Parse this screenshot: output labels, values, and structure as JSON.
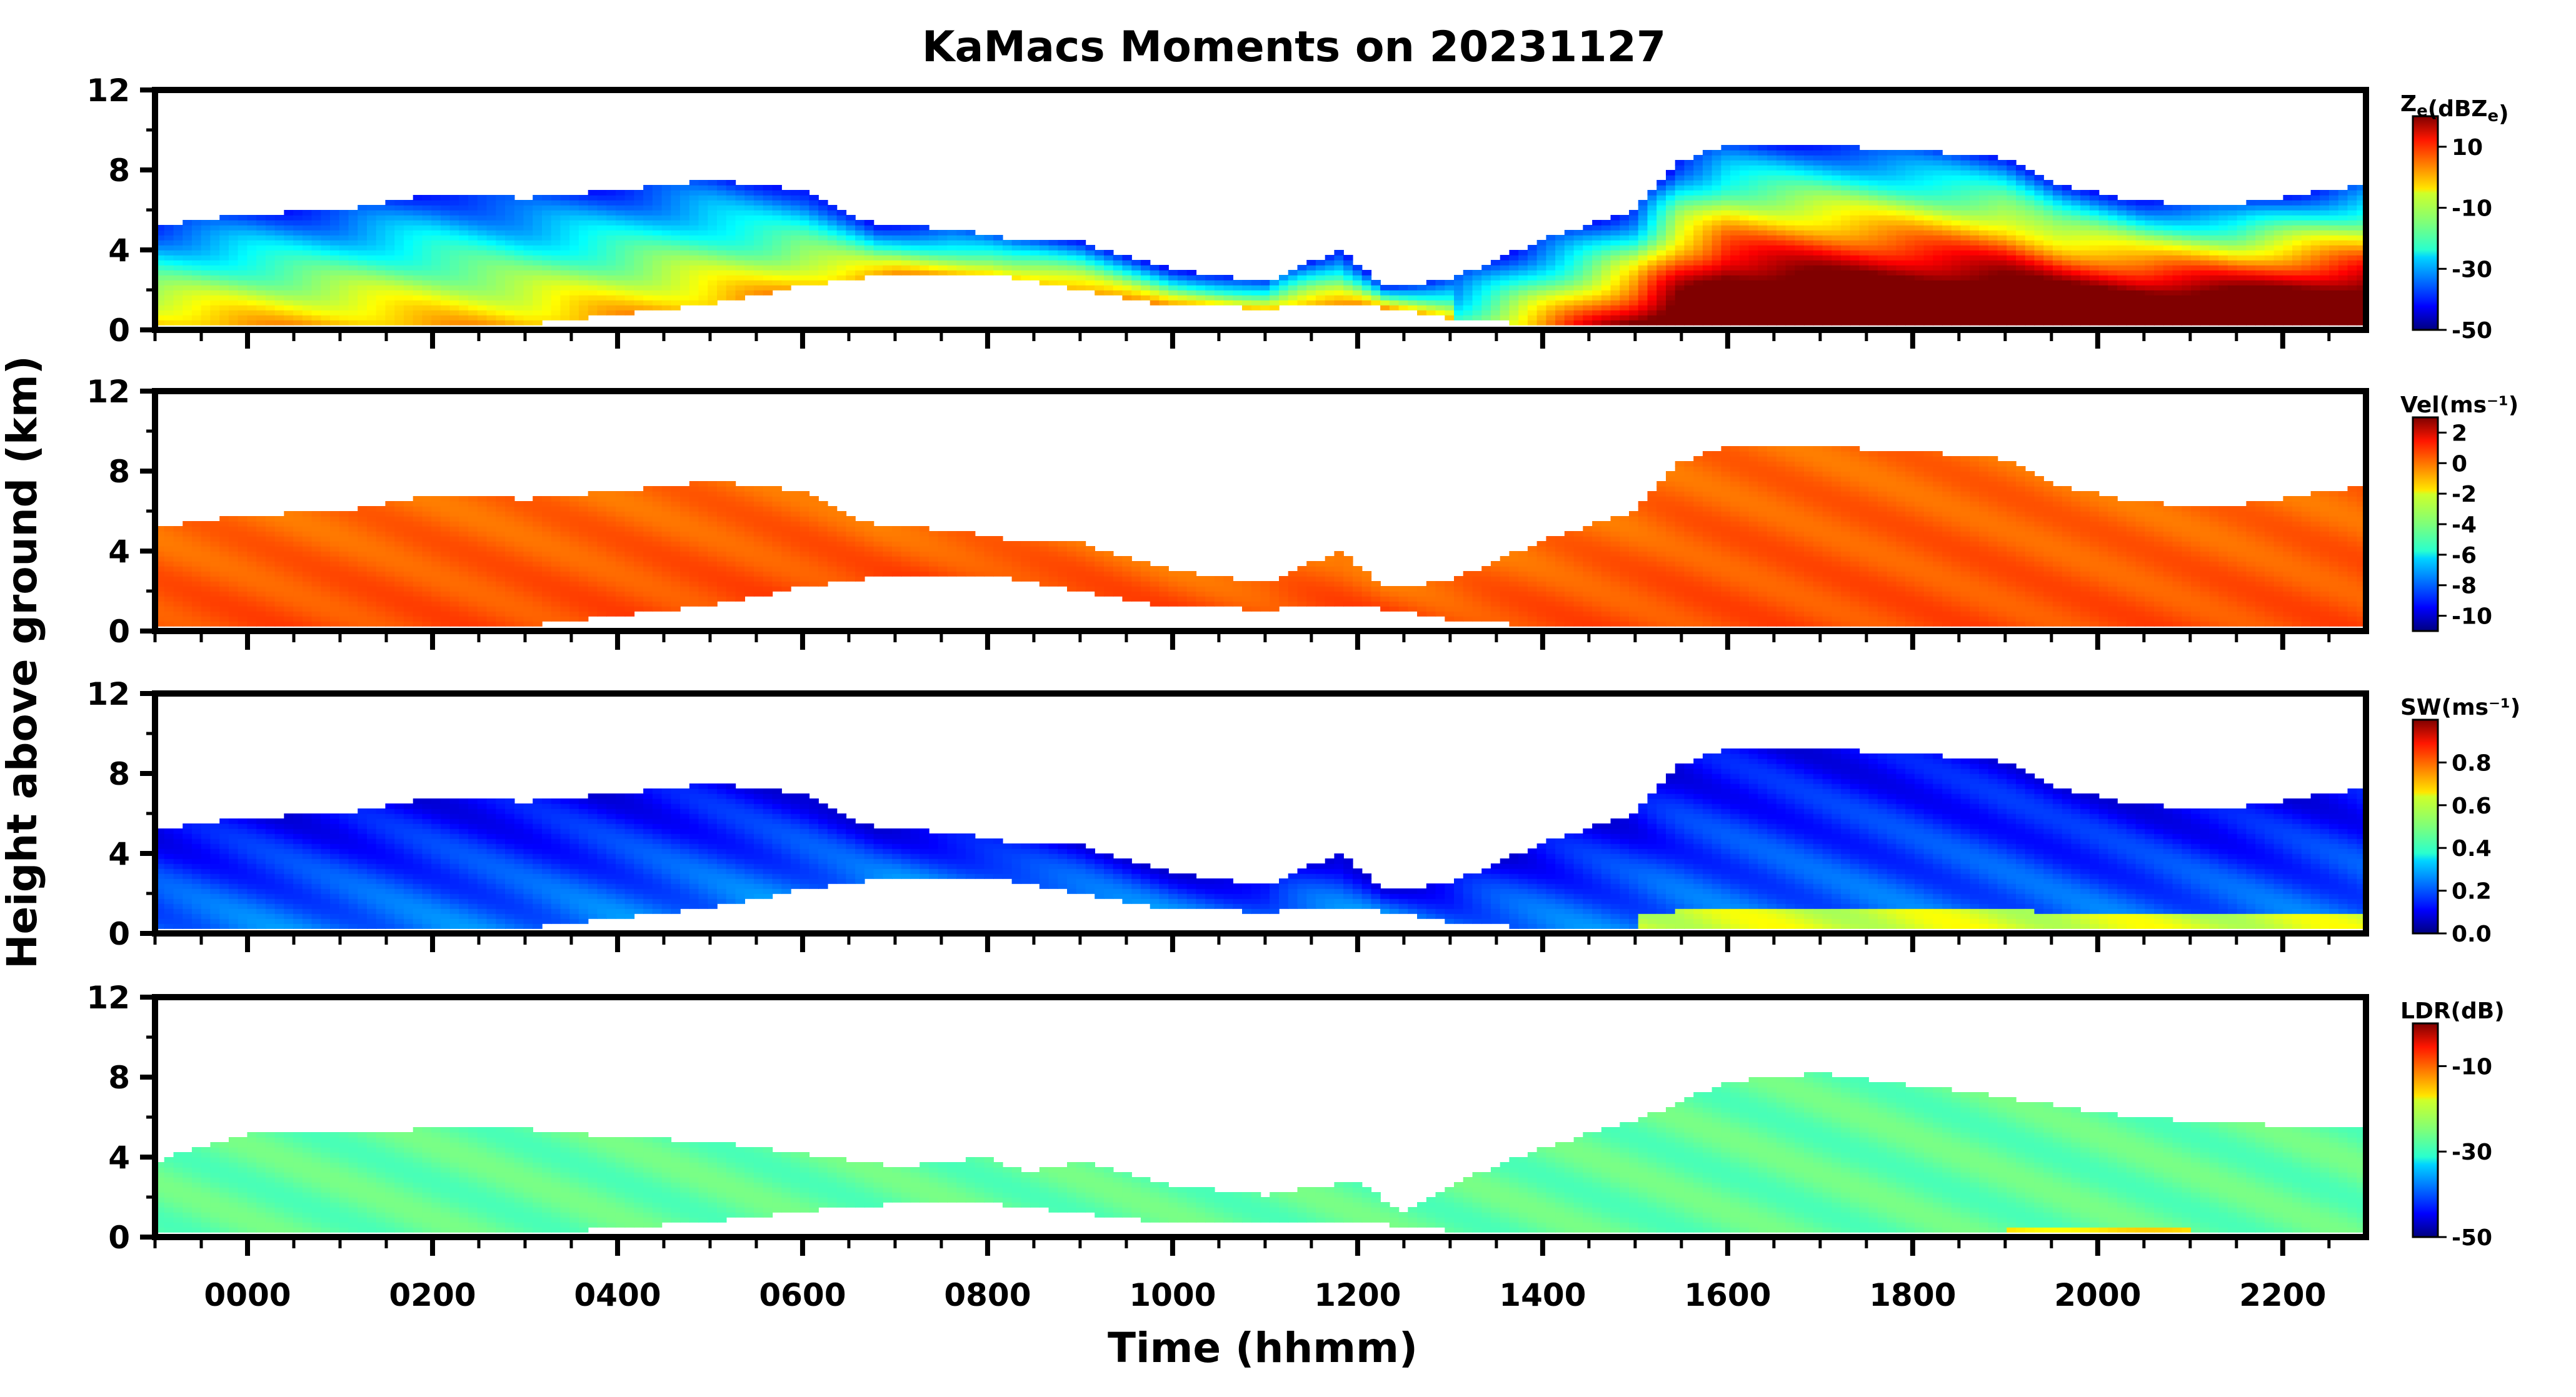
{
  "chart_data": {
    "type": "heatmap",
    "title": "KaMacs Moments on 20231127",
    "xlabel": "Time (hhmm)",
    "ylabel": "Height above ground (km)",
    "x_tick_labels": [
      "0000",
      "0200",
      "0400",
      "0600",
      "0800",
      "1000",
      "1200",
      "1400",
      "1600",
      "1800",
      "2000",
      "2200"
    ],
    "x_range_hours": [
      -1.0,
      22.9
    ],
    "panels": [
      {
        "name": "Ze",
        "colorbar_label": "Z_e(dBZ_e)",
        "colorbar_ticks": [
          "10",
          "-10",
          "-30",
          "-50"
        ],
        "colorbar_tick_values": [
          10,
          -10,
          -30,
          -50
        ],
        "clim": [
          -50,
          20
        ],
        "y_tick_labels": [
          "0",
          "4",
          "8",
          "12"
        ],
        "ylim": [
          0,
          12
        ]
      },
      {
        "name": "Vel",
        "colorbar_label": "Vel(ms⁻¹)",
        "colorbar_ticks": [
          "2",
          "0",
          "-2",
          "-4",
          "-6",
          "-8",
          "-10"
        ],
        "colorbar_tick_values": [
          2,
          0,
          -2,
          -4,
          -6,
          -8,
          -10
        ],
        "clim": [
          -11,
          3
        ],
        "y_tick_labels": [
          "0",
          "4",
          "8",
          "12"
        ],
        "ylim": [
          0,
          12
        ]
      },
      {
        "name": "SW",
        "colorbar_label": "SW(ms⁻¹)",
        "colorbar_ticks": [
          "0.8",
          "0.6",
          "0.4",
          "0.2",
          "0.0"
        ],
        "colorbar_tick_values": [
          0.8,
          0.6,
          0.4,
          0.2,
          0.0
        ],
        "clim": [
          0,
          1
        ],
        "y_tick_labels": [
          "0",
          "4",
          "8",
          "12"
        ],
        "ylim": [
          0,
          12
        ]
      },
      {
        "name": "LDR",
        "colorbar_label": "LDR(dB)",
        "colorbar_ticks": [
          "-10",
          "-30",
          "-50"
        ],
        "colorbar_tick_values": [
          -10,
          -30,
          -50
        ],
        "clim": [
          -50,
          0
        ],
        "y_tick_labels": [
          "0",
          "4",
          "8",
          "12"
        ],
        "ylim": [
          0,
          12
        ]
      }
    ]
  }
}
